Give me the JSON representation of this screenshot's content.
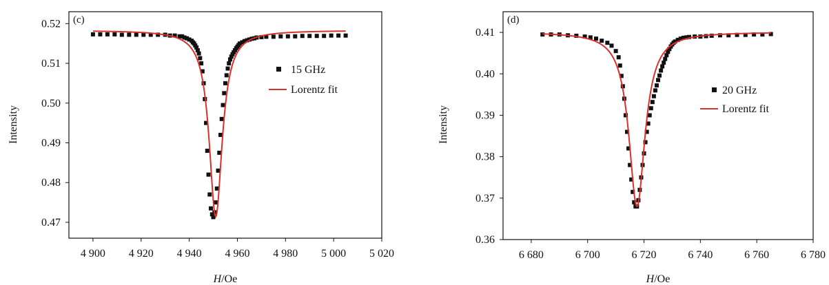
{
  "colors": {
    "data_marker": "#111111",
    "fit_line": "#d9302c",
    "frame": "#111111"
  },
  "chart_data": [
    {
      "type": "scatter",
      "panel_label": "(c)",
      "xlabel_italic": "H",
      "xlabel_rest": "/Oe",
      "ylabel": "Intensity",
      "xlim": [
        4890,
        5020
      ],
      "ylim": [
        0.466,
        0.523
      ],
      "xticks": [
        4900,
        4920,
        4940,
        4960,
        4980,
        5000,
        5020
      ],
      "xtick_labels": [
        "4 900",
        "4 920",
        "4 940",
        "4 960",
        "4 980",
        "5 000",
        "5 020"
      ],
      "yticks": [
        0.47,
        0.48,
        0.49,
        0.5,
        0.51,
        0.52
      ],
      "ytick_labels": [
        "0.47",
        "0.48",
        "0.49",
        "0.50",
        "0.51",
        "0.52"
      ],
      "legend_position": "right",
      "series": [
        {
          "name": "15 GHz",
          "kind": "markers",
          "x": [
            4900,
            4903,
            4906,
            4909,
            4912,
            4915,
            4918,
            4921,
            4924,
            4927,
            4930,
            4932,
            4934,
            4936,
            4937,
            4938,
            4939,
            4940,
            4941,
            4941.5,
            4942,
            4942.5,
            4943,
            4943.5,
            4944,
            4944.5,
            4945,
            4945.5,
            4946,
            4946.5,
            4947,
            4947.5,
            4948,
            4948.5,
            4949,
            4949.5,
            4950,
            4950.5,
            4951,
            4951.5,
            4952,
            4952.5,
            4953,
            4953.5,
            4954,
            4954.5,
            4955,
            4955.5,
            4956,
            4956.5,
            4957,
            4957.5,
            4958,
            4958.5,
            4959,
            4959.5,
            4960,
            4960.5,
            4961,
            4962,
            4963,
            4964,
            4965,
            4966,
            4967,
            4968,
            4970,
            4972,
            4975,
            4978,
            4981,
            4984,
            4987,
            4990,
            4993,
            4996,
            4999,
            5002,
            5005
          ],
          "y": [
            0.5173,
            0.5173,
            0.5173,
            0.5173,
            0.5172,
            0.5172,
            0.5172,
            0.5172,
            0.5172,
            0.5172,
            0.5172,
            0.517,
            0.517,
            0.5168,
            0.5168,
            0.5165,
            0.5163,
            0.516,
            0.5157,
            0.5153,
            0.515,
            0.5145,
            0.514,
            0.5133,
            0.5125,
            0.5113,
            0.51,
            0.508,
            0.505,
            0.501,
            0.495,
            0.488,
            0.482,
            0.477,
            0.4735,
            0.472,
            0.4713,
            0.4725,
            0.475,
            0.4785,
            0.483,
            0.4875,
            0.492,
            0.496,
            0.4995,
            0.5025,
            0.505,
            0.507,
            0.5087,
            0.51,
            0.511,
            0.5117,
            0.5123,
            0.5128,
            0.5133,
            0.5138,
            0.5142,
            0.5146,
            0.515,
            0.5153,
            0.5156,
            0.5158,
            0.516,
            0.5162,
            0.5163,
            0.5165,
            0.5166,
            0.5167,
            0.5167,
            0.5168,
            0.5168,
            0.5168,
            0.5169,
            0.5169,
            0.5169,
            0.5169,
            0.517,
            0.517,
            0.517
          ]
        },
        {
          "name": "Lorentz fit",
          "kind": "line",
          "center": 4951,
          "hwhm": 3.3,
          "depth": 0.0469,
          "baseline": 0.5183,
          "x_range": [
            4900,
            5005
          ]
        }
      ]
    },
    {
      "type": "scatter",
      "panel_label": "(d)",
      "xlabel_italic": "H",
      "xlabel_rest": "/Oe",
      "ylabel": "Intensity",
      "xlim": [
        6670,
        6780
      ],
      "ylim": [
        0.36,
        0.415
      ],
      "xticks": [
        6680,
        6700,
        6720,
        6740,
        6760,
        6780
      ],
      "xtick_labels": [
        "6 680",
        "6 700",
        "6 720",
        "6 740",
        "6 760",
        "6 780"
      ],
      "yticks": [
        0.36,
        0.37,
        0.38,
        0.39,
        0.4,
        0.41
      ],
      "ytick_labels": [
        "0.36",
        "0.37",
        "0.38",
        "0.39",
        "0.40",
        "0.41"
      ],
      "legend_position": "right",
      "series": [
        {
          "name": "20 GHz",
          "kind": "markers",
          "x": [
            6684,
            6687,
            6690,
            6693,
            6696,
            6699,
            6701,
            6703,
            6705,
            6707,
            6708.5,
            6710,
            6711,
            6711.5,
            6712,
            6712.5,
            6713,
            6713.5,
            6714,
            6714.5,
            6715,
            6715.5,
            6716,
            6716.5,
            6717,
            6717.5,
            6718,
            6718.5,
            6719,
            6719.5,
            6720,
            6720.5,
            6721,
            6721.5,
            6722,
            6722.5,
            6723,
            6723.5,
            6724,
            6724.5,
            6725,
            6725.5,
            6726,
            6726.5,
            6727,
            6727.5,
            6728,
            6728.5,
            6729,
            6729.5,
            6730,
            6730.5,
            6731,
            6732,
            6733,
            6734,
            6735,
            6736,
            6738,
            6740,
            6742,
            6744,
            6747,
            6750,
            6753,
            6756,
            6759,
            6762,
            6765
          ],
          "y": [
            0.4095,
            0.4095,
            0.4095,
            0.4093,
            0.4092,
            0.409,
            0.4088,
            0.4085,
            0.408,
            0.4075,
            0.4068,
            0.4055,
            0.404,
            0.402,
            0.3995,
            0.397,
            0.394,
            0.39,
            0.386,
            0.382,
            0.378,
            0.3745,
            0.3715,
            0.369,
            0.368,
            0.368,
            0.3695,
            0.372,
            0.375,
            0.378,
            0.3808,
            0.3835,
            0.386,
            0.388,
            0.39,
            0.3917,
            0.3932,
            0.3946,
            0.396,
            0.3972,
            0.3985,
            0.3996,
            0.4008,
            0.4018,
            0.4027,
            0.4036,
            0.4045,
            0.4053,
            0.406,
            0.4066,
            0.4071,
            0.4075,
            0.4078,
            0.4082,
            0.4085,
            0.4087,
            0.4088,
            0.4089,
            0.409,
            0.409,
            0.4091,
            0.4092,
            0.4093,
            0.4093,
            0.4094,
            0.4094,
            0.4095,
            0.4095,
            0.4096
          ]
        },
        {
          "name": "Lorentz fit",
          "kind": "line",
          "center": 6717.5,
          "hwhm": 3.5,
          "depth": 0.0421,
          "baseline": 0.4101,
          "x_range": [
            6684,
            6765
          ]
        }
      ]
    }
  ]
}
